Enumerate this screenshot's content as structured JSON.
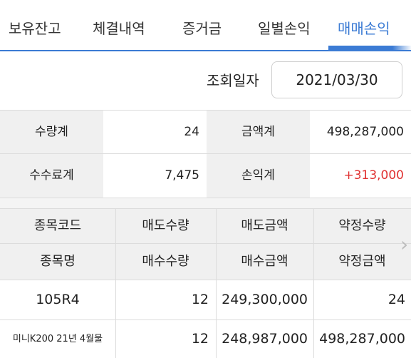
{
  "tabs": [
    {
      "label": "보유잔고",
      "active": false
    },
    {
      "label": "체결내역",
      "active": false
    },
    {
      "label": "증거금",
      "active": false
    },
    {
      "label": "일별손익",
      "active": false
    },
    {
      "label": "매매손익",
      "active": true
    }
  ],
  "query": {
    "label": "조회일자",
    "date": "2021/03/30"
  },
  "summary": {
    "qty_label": "수량계",
    "qty_value": "24",
    "amount_label": "금액계",
    "amount_value": "498,287,000",
    "fee_label": "수수료계",
    "fee_value": "7,475",
    "pnl_label": "손익계",
    "pnl_value": "+313,000"
  },
  "table": {
    "header_row1": [
      "종목코드",
      "매도수량",
      "매도금액",
      "약정수량"
    ],
    "header_row2": [
      "종목명",
      "매수수량",
      "매수금액",
      "약정금액"
    ],
    "rows": [
      {
        "code": "105R4",
        "sell_qty": "12",
        "sell_amount": "249,300,000",
        "contract_qty": "24",
        "name": "미니K200 21년 4월물",
        "buy_qty": "12",
        "buy_amount": "248,987,000",
        "contract_amount": "498,287,000"
      }
    ]
  },
  "colors": {
    "accent": "#3b7bd4",
    "profit": "#e03131"
  }
}
